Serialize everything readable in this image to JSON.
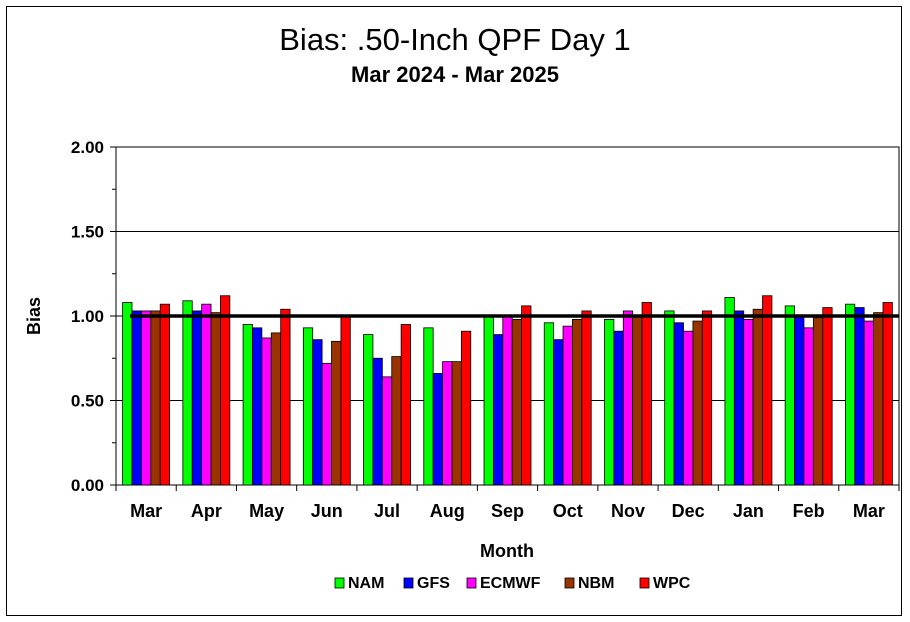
{
  "chart_data": {
    "type": "bar",
    "title": "Bias:  .50-Inch QPF Day 1",
    "subtitle": "Mar 2024 - Mar 2025",
    "xlabel": "Month",
    "ylabel": "Bias",
    "ylim": [
      0,
      2
    ],
    "yticks": [
      "0.00",
      "0.50",
      "1.00",
      "1.50",
      "2.00"
    ],
    "grid": true,
    "legend_position": "bottom",
    "reference_line": 1.0,
    "categories": [
      "Mar",
      "Apr",
      "May",
      "Jun",
      "Jul",
      "Aug",
      "Sep",
      "Oct",
      "Nov",
      "Dec",
      "Jan",
      "Feb",
      "Mar"
    ],
    "series": [
      {
        "name": "NAM",
        "color": "#00ff00",
        "values": [
          1.08,
          1.09,
          0.95,
          0.93,
          0.89,
          0.93,
          1.0,
          0.96,
          0.98,
          1.03,
          1.11,
          1.06,
          1.07
        ]
      },
      {
        "name": "GFS",
        "color": "#0000ff",
        "values": [
          1.03,
          1.03,
          0.93,
          0.86,
          0.75,
          0.66,
          0.89,
          0.86,
          0.91,
          0.96,
          1.03,
          1.0,
          1.05
        ]
      },
      {
        "name": "ECMWF",
        "color": "#ff00ff",
        "values": [
          1.03,
          1.07,
          0.87,
          0.72,
          0.64,
          0.73,
          1.0,
          0.94,
          1.03,
          0.91,
          0.98,
          0.93,
          0.97
        ]
      },
      {
        "name": "NBM",
        "color": "#993300",
        "values": [
          1.03,
          1.02,
          0.9,
          0.85,
          0.76,
          0.73,
          0.98,
          0.98,
          1.0,
          0.97,
          1.04,
          0.99,
          1.02
        ]
      },
      {
        "name": "WPC",
        "color": "#ff0000",
        "values": [
          1.07,
          1.12,
          1.04,
          1.0,
          0.95,
          0.91,
          1.06,
          1.03,
          1.08,
          1.03,
          1.12,
          1.05,
          1.08
        ]
      }
    ]
  }
}
